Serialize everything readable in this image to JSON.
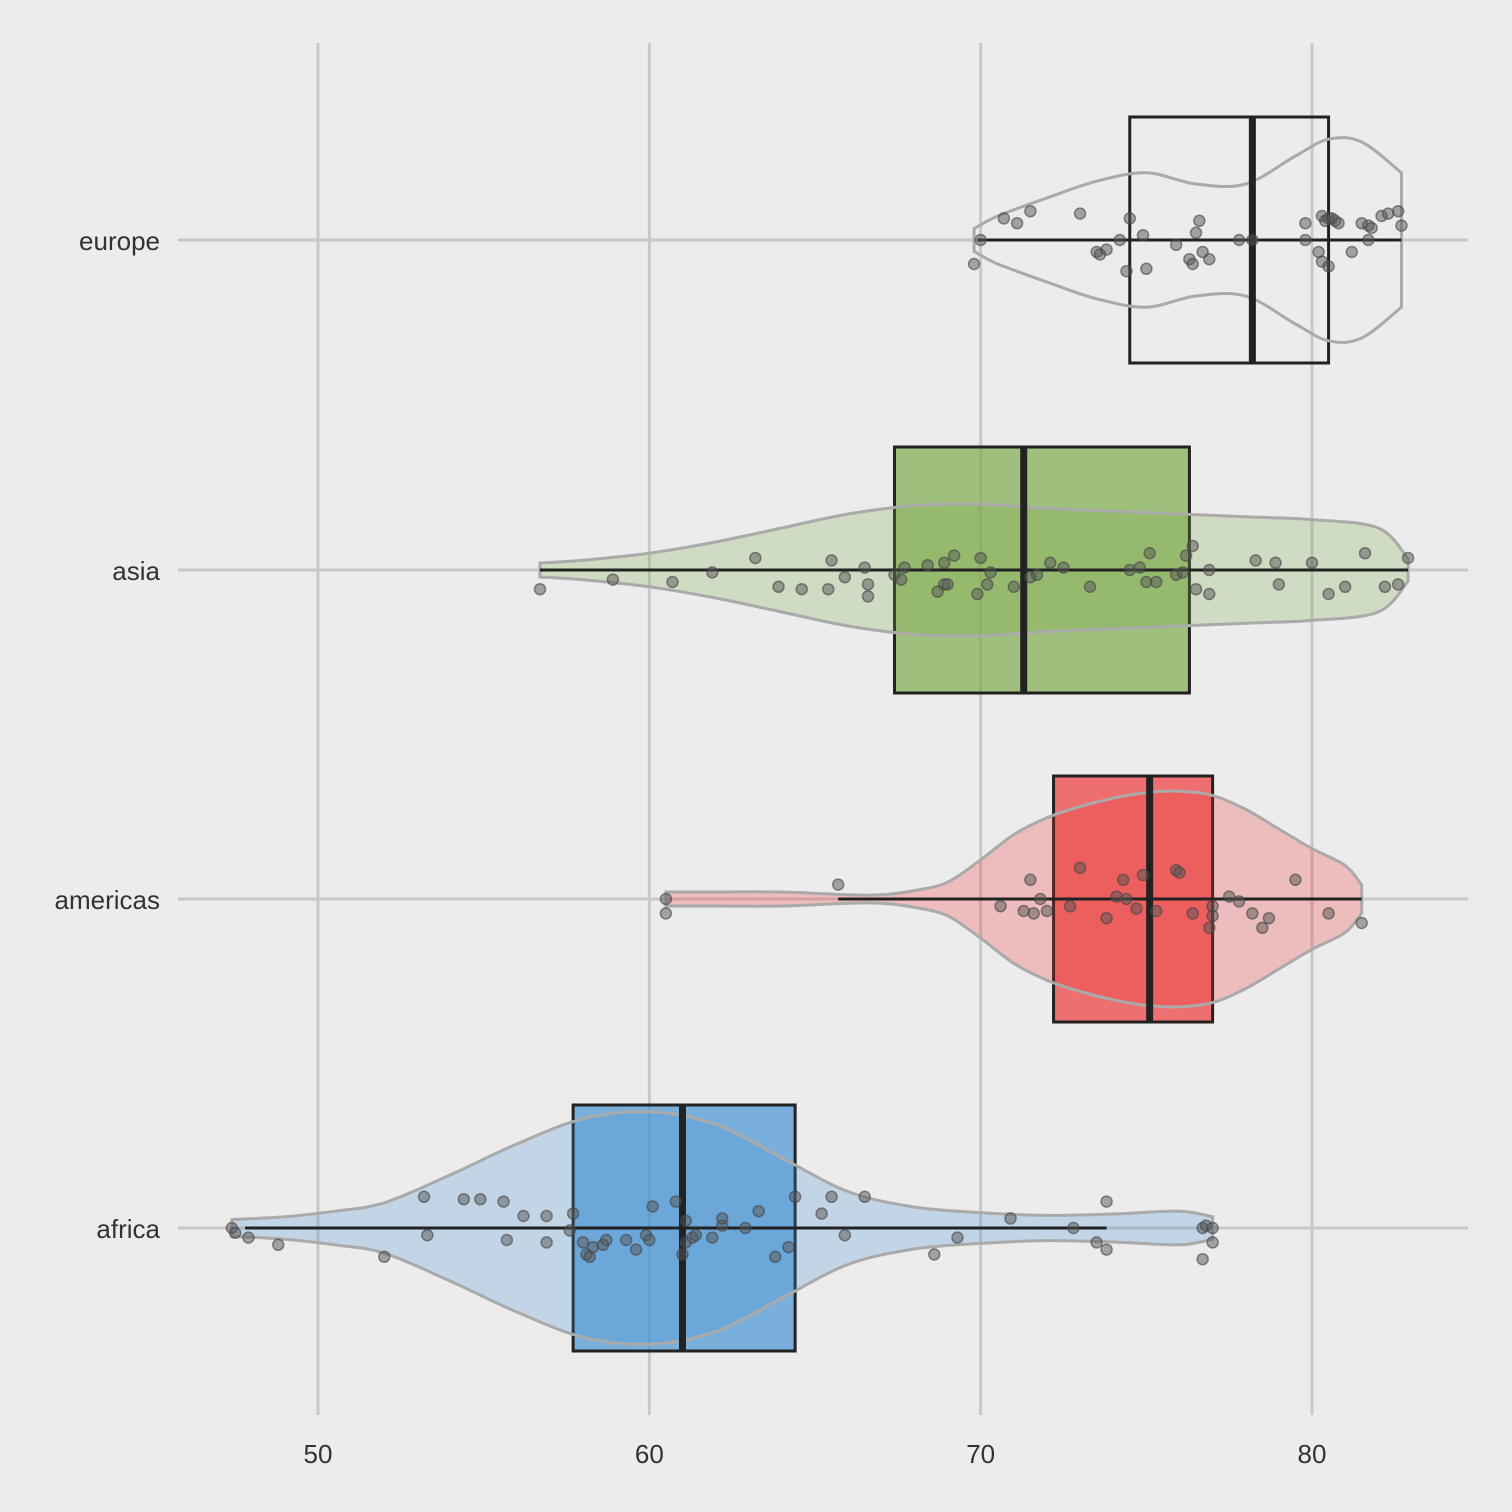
{
  "chart_data": {
    "type": "box",
    "orientation": "horizontal",
    "overlays": [
      "violin",
      "jitter-points"
    ],
    "title": "",
    "xlabel": "",
    "ylabel": "",
    "xlim": [
      45,
      85
    ],
    "x_ticks": [
      50,
      60,
      70,
      80
    ],
    "x_tick_labels": [
      "50",
      "60",
      "70",
      "80"
    ],
    "grid": true,
    "legend": "none",
    "categories": [
      "europe",
      "asia",
      "americas",
      "africa"
    ],
    "groups": [
      {
        "name": "europe",
        "color": "#ffffff",
        "violin_color": "#ececec",
        "box": {
          "whisker_low": 69.9,
          "q1": 74.5,
          "median": 78.2,
          "q3": 80.5,
          "whisker_high": 82.7
        },
        "violin": [
          [
            69.8,
            0.08
          ],
          [
            70.5,
            0.17
          ],
          [
            72.0,
            0.3
          ],
          [
            73.5,
            0.42
          ],
          [
            75.0,
            0.48
          ],
          [
            76.5,
            0.4
          ],
          [
            78.0,
            0.4
          ],
          [
            79.5,
            0.6
          ],
          [
            80.5,
            0.72
          ],
          [
            81.5,
            0.7
          ],
          [
            82.7,
            0.48
          ]
        ],
        "points": [
          [
            69.8,
            0.1
          ],
          [
            70.0,
            0.0
          ],
          [
            70.7,
            -0.09
          ],
          [
            71.1,
            -0.07
          ],
          [
            71.5,
            -0.12
          ],
          [
            73.0,
            -0.11
          ],
          [
            73.5,
            0.05
          ],
          [
            73.6,
            0.06
          ],
          [
            73.8,
            0.04
          ],
          [
            74.2,
            0.0
          ],
          [
            74.4,
            0.13
          ],
          [
            74.5,
            -0.09
          ],
          [
            74.9,
            -0.02
          ],
          [
            75.0,
            0.12
          ],
          [
            75.9,
            0.02
          ],
          [
            76.3,
            0.08
          ],
          [
            76.4,
            0.1
          ],
          [
            76.5,
            -0.03
          ],
          [
            76.6,
            -0.08
          ],
          [
            76.7,
            0.05
          ],
          [
            76.9,
            0.08
          ],
          [
            77.8,
            0.0
          ],
          [
            78.2,
            0.0
          ],
          [
            79.8,
            0.0
          ],
          [
            79.8,
            -0.07
          ],
          [
            80.2,
            0.05
          ],
          [
            80.3,
            -0.1
          ],
          [
            80.3,
            0.09
          ],
          [
            80.4,
            -0.08
          ],
          [
            80.5,
            -0.09
          ],
          [
            80.5,
            0.11
          ],
          [
            80.6,
            -0.09
          ],
          [
            80.7,
            -0.08
          ],
          [
            80.8,
            -0.07
          ],
          [
            81.2,
            0.05
          ],
          [
            81.5,
            -0.07
          ],
          [
            81.7,
            -0.06
          ],
          [
            81.7,
            0.0
          ],
          [
            81.8,
            -0.05
          ],
          [
            82.1,
            -0.1
          ],
          [
            82.3,
            -0.11
          ],
          [
            82.6,
            -0.12
          ],
          [
            82.7,
            -0.06
          ]
        ]
      },
      {
        "name": "asia",
        "color": "#77a942",
        "violin_color": "#77a942",
        "box": {
          "whisker_low": 56.7,
          "q1": 67.4,
          "median": 71.3,
          "q3": 76.3,
          "whisker_high": 82.9
        },
        "violin": [
          [
            56.7,
            0.05
          ],
          [
            58.0,
            0.07
          ],
          [
            60.0,
            0.12
          ],
          [
            62.0,
            0.2
          ],
          [
            64.0,
            0.3
          ],
          [
            66.0,
            0.4
          ],
          [
            68.0,
            0.46
          ],
          [
            70.0,
            0.47
          ],
          [
            72.0,
            0.44
          ],
          [
            74.0,
            0.42
          ],
          [
            76.0,
            0.4
          ],
          [
            78.0,
            0.38
          ],
          [
            80.0,
            0.36
          ],
          [
            82.0,
            0.3
          ],
          [
            82.9,
            0.08
          ]
        ],
        "points": [
          [
            56.7,
            0.08
          ],
          [
            58.9,
            0.04
          ],
          [
            60.7,
            0.05
          ],
          [
            61.9,
            0.01
          ],
          [
            63.2,
            -0.05
          ],
          [
            63.9,
            0.07
          ],
          [
            64.6,
            0.08
          ],
          [
            65.4,
            0.08
          ],
          [
            65.5,
            -0.04
          ],
          [
            65.9,
            0.03
          ],
          [
            66.5,
            -0.01
          ],
          [
            66.6,
            0.11
          ],
          [
            66.6,
            0.06
          ],
          [
            67.4,
            0.02
          ],
          [
            67.6,
            0.04
          ],
          [
            67.7,
            -0.01
          ],
          [
            68.4,
            -0.02
          ],
          [
            68.7,
            0.09
          ],
          [
            68.9,
            -0.03
          ],
          [
            68.9,
            0.06
          ],
          [
            69.0,
            0.06
          ],
          [
            69.2,
            -0.06
          ],
          [
            69.9,
            0.1
          ],
          [
            70.0,
            -0.05
          ],
          [
            70.2,
            0.06
          ],
          [
            70.3,
            0.01
          ],
          [
            71.0,
            0.07
          ],
          [
            71.5,
            0.03
          ],
          [
            71.7,
            0.02
          ],
          [
            72.1,
            -0.03
          ],
          [
            72.5,
            -0.01
          ],
          [
            73.3,
            0.07
          ],
          [
            74.5,
            0.0
          ],
          [
            74.8,
            -0.01
          ],
          [
            75.0,
            0.05
          ],
          [
            75.1,
            -0.07
          ],
          [
            75.3,
            0.05
          ],
          [
            75.9,
            0.02
          ],
          [
            76.1,
            0.01
          ],
          [
            76.2,
            -0.06
          ],
          [
            76.4,
            -0.1
          ],
          [
            76.5,
            0.08
          ],
          [
            76.9,
            0.0
          ],
          [
            76.9,
            0.1
          ],
          [
            78.3,
            -0.04
          ],
          [
            78.9,
            -0.03
          ],
          [
            79.0,
            0.06
          ],
          [
            80.0,
            -0.03
          ],
          [
            80.5,
            0.1
          ],
          [
            81.0,
            0.07
          ],
          [
            81.6,
            -0.07
          ],
          [
            82.2,
            0.07
          ],
          [
            82.6,
            0.06
          ],
          [
            82.9,
            -0.05
          ]
        ]
      },
      {
        "name": "americas",
        "color": "#ee2c2c",
        "violin_color": "#ee2c2c",
        "box": {
          "whisker_low": 65.7,
          "q1": 72.2,
          "median": 75.1,
          "q3": 77.0,
          "whisker_high": 81.5
        },
        "violin": [
          [
            60.5,
            0.05
          ],
          [
            62.0,
            0.05
          ],
          [
            64.0,
            0.05
          ],
          [
            66.0,
            0.03
          ],
          [
            67.0,
            0.03
          ],
          [
            68.0,
            0.06
          ],
          [
            69.0,
            0.12
          ],
          [
            70.0,
            0.28
          ],
          [
            71.0,
            0.46
          ],
          [
            72.0,
            0.58
          ],
          [
            73.0,
            0.66
          ],
          [
            74.0,
            0.72
          ],
          [
            75.0,
            0.76
          ],
          [
            76.0,
            0.77
          ],
          [
            77.0,
            0.74
          ],
          [
            78.0,
            0.64
          ],
          [
            79.0,
            0.5
          ],
          [
            80.0,
            0.36
          ],
          [
            81.0,
            0.24
          ],
          [
            81.5,
            0.1
          ]
        ],
        "points": [
          [
            60.5,
            0.06
          ],
          [
            60.5,
            0.0
          ],
          [
            65.7,
            -0.06
          ],
          [
            70.6,
            0.03
          ],
          [
            71.3,
            0.05
          ],
          [
            71.5,
            -0.08
          ],
          [
            71.6,
            0.06
          ],
          [
            71.8,
            0.0
          ],
          [
            72.0,
            0.05
          ],
          [
            72.7,
            0.03
          ],
          [
            73.0,
            -0.13
          ],
          [
            73.8,
            0.08
          ],
          [
            74.1,
            -0.01
          ],
          [
            74.3,
            -0.08
          ],
          [
            74.4,
            0.0
          ],
          [
            74.7,
            0.04
          ],
          [
            74.9,
            -0.1
          ],
          [
            75.3,
            0.05
          ],
          [
            75.9,
            -0.12
          ],
          [
            76.0,
            -0.11
          ],
          [
            76.4,
            0.06
          ],
          [
            76.9,
            0.12
          ],
          [
            77.0,
            0.07
          ],
          [
            77.0,
            0.03
          ],
          [
            77.5,
            -0.01
          ],
          [
            77.8,
            0.01
          ],
          [
            78.2,
            0.06
          ],
          [
            78.5,
            0.12
          ],
          [
            78.7,
            0.08
          ],
          [
            79.5,
            -0.08
          ],
          [
            80.5,
            0.06
          ],
          [
            81.5,
            0.1
          ]
        ]
      },
      {
        "name": "africa",
        "color": "#3f8fd2",
        "violin_color": "#3f8fd2",
        "box": {
          "whisker_low": 47.8,
          "q1": 57.7,
          "median": 61.0,
          "q3": 64.4,
          "whisker_high": 73.8
        },
        "violin": [
          [
            47.4,
            0.06
          ],
          [
            49.0,
            0.08
          ],
          [
            50.5,
            0.12
          ],
          [
            52.0,
            0.18
          ],
          [
            54.0,
            0.38
          ],
          [
            56.0,
            0.6
          ],
          [
            58.0,
            0.78
          ],
          [
            60.0,
            0.83
          ],
          [
            62.0,
            0.74
          ],
          [
            64.0,
            0.5
          ],
          [
            66.0,
            0.26
          ],
          [
            68.0,
            0.15
          ],
          [
            70.0,
            0.11
          ],
          [
            72.0,
            0.09
          ],
          [
            74.0,
            0.1
          ],
          [
            76.0,
            0.12
          ],
          [
            77.0,
            0.08
          ]
        ],
        "points": [
          [
            47.4,
            0.0
          ],
          [
            47.5,
            0.02
          ],
          [
            47.9,
            0.04
          ],
          [
            48.8,
            0.07
          ],
          [
            52.0,
            0.12
          ],
          [
            53.2,
            -0.13
          ],
          [
            53.3,
            0.03
          ],
          [
            54.4,
            -0.12
          ],
          [
            54.9,
            -0.12
          ],
          [
            55.6,
            -0.11
          ],
          [
            55.7,
            0.05
          ],
          [
            56.2,
            -0.05
          ],
          [
            56.9,
            0.06
          ],
          [
            56.9,
            -0.05
          ],
          [
            57.6,
            0.01
          ],
          [
            57.7,
            -0.06
          ],
          [
            58.0,
            0.06
          ],
          [
            58.1,
            0.11
          ],
          [
            58.2,
            0.12
          ],
          [
            58.3,
            0.08
          ],
          [
            58.6,
            0.07
          ],
          [
            58.7,
            0.05
          ],
          [
            59.3,
            0.05
          ],
          [
            59.6,
            0.09
          ],
          [
            59.9,
            0.03
          ],
          [
            60.0,
            0.05
          ],
          [
            60.1,
            -0.09
          ],
          [
            60.8,
            -0.11
          ],
          [
            61.0,
            0.11
          ],
          [
            61.1,
            -0.03
          ],
          [
            61.1,
            0.06
          ],
          [
            61.3,
            0.04
          ],
          [
            61.4,
            0.03
          ],
          [
            61.9,
            0.04
          ],
          [
            62.2,
            -0.01
          ],
          [
            62.2,
            -0.04
          ],
          [
            62.9,
            0.0
          ],
          [
            63.3,
            -0.07
          ],
          [
            63.8,
            0.12
          ],
          [
            64.2,
            0.08
          ],
          [
            64.4,
            -0.13
          ],
          [
            65.2,
            -0.06
          ],
          [
            65.5,
            -0.13
          ],
          [
            65.9,
            0.03
          ],
          [
            66.5,
            -0.13
          ],
          [
            68.6,
            0.11
          ],
          [
            69.3,
            0.04
          ],
          [
            70.9,
            -0.04
          ],
          [
            72.8,
            0.0
          ],
          [
            73.5,
            0.06
          ],
          [
            73.8,
            0.09
          ],
          [
            73.8,
            -0.11
          ],
          [
            76.7,
            0.13
          ],
          [
            76.7,
            0.0
          ],
          [
            76.8,
            -0.01
          ],
          [
            77.0,
            0.06
          ],
          [
            77.0,
            0.0
          ]
        ]
      }
    ]
  }
}
